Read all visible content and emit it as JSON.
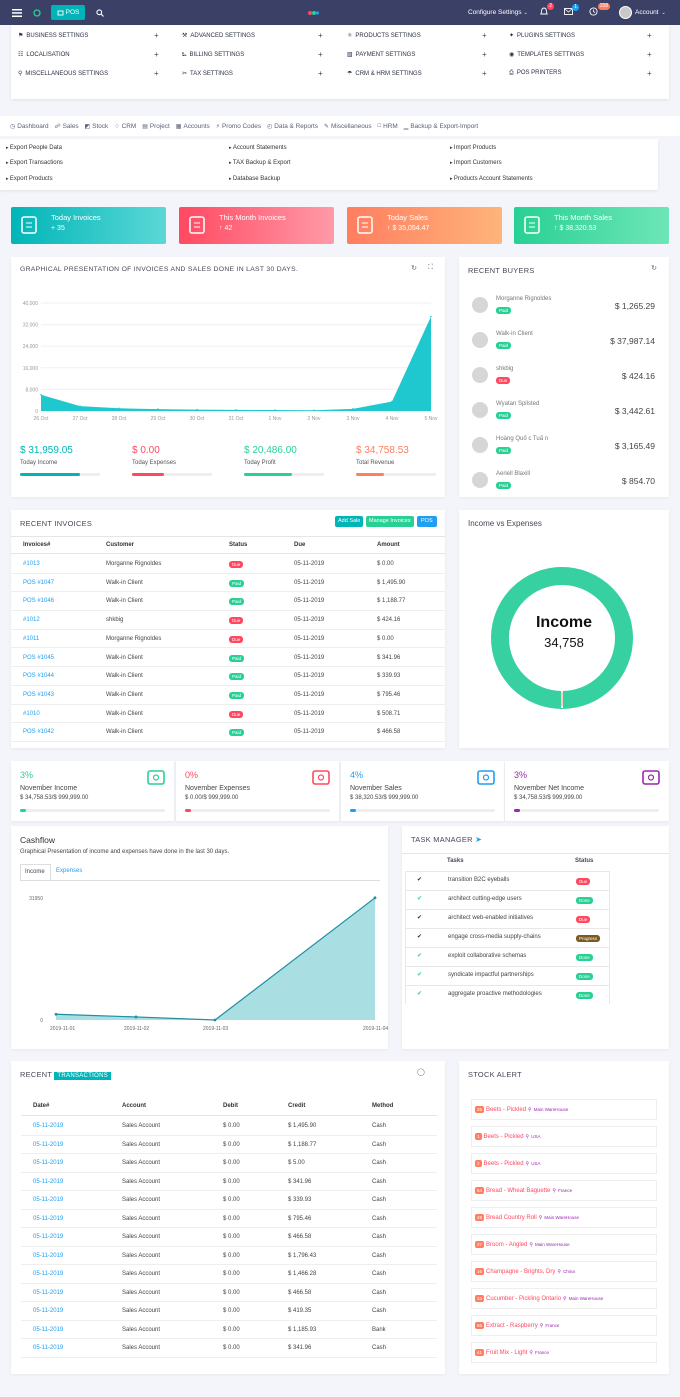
{
  "topbar": {
    "pos_label": "POS",
    "configure": "Configure Settings",
    "badge1": "2",
    "badge2": "1",
    "badge3": "158",
    "account": "Account"
  },
  "settings": [
    {
      "label": "BUSINESS SETTINGS",
      "icon": "tag-icon"
    },
    {
      "label": "ADVANCED SETTINGS",
      "icon": "wrench-icon"
    },
    {
      "label": "PRODUCTS SETTINGS",
      "icon": "flask-icon"
    },
    {
      "label": "PLUGINS SETTINGS",
      "icon": "magic-icon"
    },
    {
      "label": "LOCALISATION",
      "icon": "calendar-icon"
    },
    {
      "label": "BILLING SETTINGS",
      "icon": "truck-icon"
    },
    {
      "label": "PAYMENT SETTINGS",
      "icon": "money-icon"
    },
    {
      "label": "TEMPLATES SETTINGS",
      "icon": "eye-icon"
    },
    {
      "label": "MISCELLANEOUS SETTINGS",
      "icon": "marker-icon"
    },
    {
      "label": "TAX SETTINGS",
      "icon": "scissors-icon"
    },
    {
      "label": "CRM & HRM SETTINGS",
      "icon": "umbrella-icon"
    },
    {
      "label": "POS PRINTERS",
      "icon": "printer-icon"
    }
  ],
  "nav": [
    "Dashboard",
    "Sales",
    "Stock",
    "CRM",
    "Project",
    "Accounts",
    "Promo Codes",
    "Data & Reports",
    "Miscellaneous",
    "HRM",
    "Backup & Export-Import"
  ],
  "subnav": [
    "Export People Data",
    "Account Statements",
    "Import Products",
    "Export Transactions",
    "TAX Backup & Export",
    "Import Customers",
    "Export Products",
    "Database Backup",
    "Products Account Statements"
  ],
  "stat_cards": [
    {
      "title": "Today Invoices",
      "value": "35",
      "color": "#00b5b8"
    },
    {
      "title": "This Month Invoices",
      "value": "42",
      "color": "#ff4961"
    },
    {
      "title": "Today Sales",
      "value": "$ 35,054.47",
      "color": "#ff7e5f"
    },
    {
      "title": "This Month Sales",
      "value": "$ 38,320.53",
      "color": "#28d094"
    }
  ],
  "graph": {
    "title": "GRAPHICAL PRESENTATION OF INVOICES AND SALES DONE IN LAST 30 DAYS."
  },
  "chart_data": [
    {
      "type": "area",
      "title": "",
      "x": [
        "26 Oct",
        "27 Oct",
        "28 Oct",
        "29 Oct",
        "30 Oct",
        "31 Oct",
        "1 Nov",
        "2 Nov",
        "3 Nov",
        "4 Nov",
        "5 Nov"
      ],
      "yticks": [
        "0",
        "8,000",
        "16,000",
        "24,000",
        "32,000",
        "40,000"
      ],
      "ylim": [
        0,
        40000
      ],
      "series": [
        {
          "values": [
            6000,
            1800,
            1000,
            700,
            500,
            400,
            350,
            300,
            800,
            3500,
            35000
          ]
        }
      ]
    },
    {
      "type": "area",
      "title": "",
      "x": [
        "2019-11-01",
        "2019-11-02",
        "2019-11-03",
        "2019-11-04"
      ],
      "yticks": [
        "0",
        "31950"
      ],
      "ylim": [
        0,
        31950
      ],
      "series": [
        {
          "values": [
            1500,
            800,
            0,
            32000
          ]
        }
      ]
    },
    {
      "type": "pie",
      "title": "",
      "categories": [
        "Income",
        "Expenses"
      ],
      "values": [
        34758,
        0
      ]
    }
  ],
  "graph_stats": [
    {
      "value": "$ 31,959.05",
      "label": "Today Income",
      "color": "#00b5b8",
      "fill": 0.75
    },
    {
      "value": "$ 0.00",
      "label": "Today Expenses",
      "color": "#ff4961",
      "fill": 0.4
    },
    {
      "value": "$ 20,486.00",
      "label": "Today Profit",
      "color": "#28d094",
      "fill": 0.6
    },
    {
      "value": "$ 34,758.53",
      "label": "Total Revenue",
      "color": "#ff7e5f",
      "fill": 0.35
    }
  ],
  "buyers": {
    "title": "RECENT BUYERS",
    "items": [
      {
        "name": "Morganne Rignoldes",
        "status": "Paid",
        "amount": "$ 1,265.29"
      },
      {
        "name": "Walk-in Client",
        "status": "Paid",
        "amount": "$ 37,987.14"
      },
      {
        "name": "shkbig",
        "status": "Due",
        "amount": "$ 424.16"
      },
      {
        "name": "Wyatan Spilsted",
        "status": "Paid",
        "amount": "$ 3,442.61"
      },
      {
        "name": "Hoàng Quố c Tuấ n",
        "status": "Paid",
        "amount": "$ 3,165.49"
      },
      {
        "name": "Aeriell Blaxill",
        "status": "Paid",
        "amount": "$ 854.70"
      }
    ]
  },
  "invoices": {
    "title": "RECENT INVOICES",
    "btn_add": "Add Sale",
    "btn_manage": "Manage Invoices",
    "btn_pos": "POS",
    "headers": [
      "Invoices#",
      "Customer",
      "Status",
      "Due",
      "Amount"
    ],
    "rows": [
      [
        "#1013",
        "Morganne Rignoldes",
        "Due",
        "05-11-2019",
        "$ 0.00"
      ],
      [
        "POS #1047",
        "Walk-in Client",
        "Paid",
        "05-11-2019",
        "$ 1,495.90"
      ],
      [
        "POS #1046",
        "Walk-in Client",
        "Paid",
        "05-11-2019",
        "$ 1,188.77"
      ],
      [
        "#1012",
        "shkbig",
        "Due",
        "05-11-2019",
        "$ 424.16"
      ],
      [
        "#1011",
        "Morganne Rignoldes",
        "Due",
        "05-11-2019",
        "$ 0.00"
      ],
      [
        "POS #1045",
        "Walk-in Client",
        "Paid",
        "05-11-2019",
        "$ 341.96"
      ],
      [
        "POS #1044",
        "Walk-in Client",
        "Paid",
        "05-11-2019",
        "$ 339.93"
      ],
      [
        "POS #1043",
        "Walk-in Client",
        "Paid",
        "05-11-2019",
        "$ 795.46"
      ],
      [
        "#1010",
        "Walk-in Client",
        "Due",
        "05-11-2019",
        "$ 508.71"
      ],
      [
        "POS #1042",
        "Walk-in Client",
        "Paid",
        "05-11-2019",
        "$ 466.58"
      ]
    ]
  },
  "income_expenses": {
    "title": "Income vs Expenses",
    "center_label": "Income",
    "center_value": "34,758"
  },
  "month_stats": [
    {
      "pct": "3%",
      "label": "November Income",
      "value": "$ 34,758.53/$ 999,999.00",
      "color": "#28d094",
      "fill": 0.035,
      "icon": "money-icon"
    },
    {
      "pct": "0%",
      "label": "November Expenses",
      "value": "$ 0.00/$ 999,999.00",
      "color": "#ff4961",
      "fill": 0.0,
      "icon": "external-link-icon"
    },
    {
      "pct": "4%",
      "label": "November Sales",
      "value": "$ 38,320.53/$ 999,999.00",
      "color": "#1e9ff2",
      "fill": 0.04,
      "icon": "flag-icon"
    },
    {
      "pct": "3%",
      "label": "November Net Income",
      "value": "$ 34,758.53/$ 999,999.00",
      "color": "#9c27b0",
      "fill": 0.035,
      "icon": "inbox-icon"
    }
  ],
  "cashflow": {
    "title": "Cashflow",
    "subtitle": "Graphical Presentation of income and expenses have done in the last 30 days.",
    "tab_income": "Income",
    "tab_expenses": "Expenses"
  },
  "tasks": {
    "title": "TASK MANAGER",
    "headers": [
      "Tasks",
      "Status"
    ],
    "rows": [
      {
        "icon": "check",
        "task": "transition B2C eyeballs",
        "status": "Due"
      },
      {
        "icon": "check",
        "task": "architect cutting-edge users",
        "status": "Done"
      },
      {
        "icon": "check",
        "task": "architect web-enabled initiatives",
        "status": "Due"
      },
      {
        "icon": "check",
        "task": "engage cross-media supply-chains",
        "status": "Progress"
      },
      {
        "icon": "check",
        "task": "exploit collaborative schemas",
        "status": "Done"
      },
      {
        "icon": "check",
        "task": "syndicate impactful partnerships",
        "status": "Done"
      },
      {
        "icon": "check",
        "task": "aggregate proactive methodologies",
        "status": "Done"
      }
    ]
  },
  "transactions": {
    "title": "RECENT",
    "title_badge": "TRANSACTIONS",
    "headers": [
      "Date#",
      "Account",
      "Debit",
      "Credit",
      "Method"
    ],
    "rows": [
      [
        "05-11-2019",
        "Sales Account",
        "$ 0.00",
        "$ 1,495.90",
        "Cash"
      ],
      [
        "05-11-2019",
        "Sales Account",
        "$ 0.00",
        "$ 1,188.77",
        "Cash"
      ],
      [
        "05-11-2019",
        "Sales Account",
        "$ 0.00",
        "$ 5.00",
        "Cash"
      ],
      [
        "05-11-2019",
        "Sales Account",
        "$ 0.00",
        "$ 341.96",
        "Cash"
      ],
      [
        "05-11-2019",
        "Sales Account",
        "$ 0.00",
        "$ 339.93",
        "Cash"
      ],
      [
        "05-11-2019",
        "Sales Account",
        "$ 0.00",
        "$ 795.46",
        "Cash"
      ],
      [
        "05-11-2019",
        "Sales Account",
        "$ 0.00",
        "$ 466.58",
        "Cash"
      ],
      [
        "05-11-2019",
        "Sales Account",
        "$ 0.00",
        "$ 1,796.43",
        "Cash"
      ],
      [
        "05-11-2019",
        "Sales Account",
        "$ 0.00",
        "$ 1,466.28",
        "Cash"
      ],
      [
        "05-11-2019",
        "Sales Account",
        "$ 0.00",
        "$ 466.58",
        "Cash"
      ],
      [
        "05-11-2019",
        "Sales Account",
        "$ 0.00",
        "$ 419.35",
        "Cash"
      ],
      [
        "05-11-2019",
        "Sales Account",
        "$ 0.00",
        "$ 1,185.93",
        "Bank"
      ],
      [
        "05-11-2019",
        "Sales Account",
        "$ 0.00",
        "$ 341.96",
        "Cash"
      ]
    ]
  },
  "stock": {
    "title": "STOCK ALERT",
    "items": [
      {
        "qty": "25",
        "name": "Beets - Pickled",
        "loc": "Main WareHouse"
      },
      {
        "qty": "1",
        "name": "Beets - Pickled",
        "loc": "USA"
      },
      {
        "qty": "2",
        "name": "Beets - Pickled",
        "loc": "USA"
      },
      {
        "qty": "54",
        "name": "Bread - Wheat Baguette",
        "loc": "France"
      },
      {
        "qty": "48",
        "name": "Bread Country Roll",
        "loc": "Main WareHouse"
      },
      {
        "qty": "27",
        "name": "Broom - Angled",
        "loc": "Main WareHouse"
      },
      {
        "qty": "16",
        "name": "Champagne - Brights, Dry",
        "loc": "China"
      },
      {
        "qty": "33",
        "name": "Cucumber - Pickling Ontario",
        "loc": "Main WareHouse"
      },
      {
        "qty": "66",
        "name": "Extract - Raspberry",
        "loc": "France"
      },
      {
        "qty": "41",
        "name": "Fruit Mix - Light",
        "loc": "France"
      }
    ]
  }
}
